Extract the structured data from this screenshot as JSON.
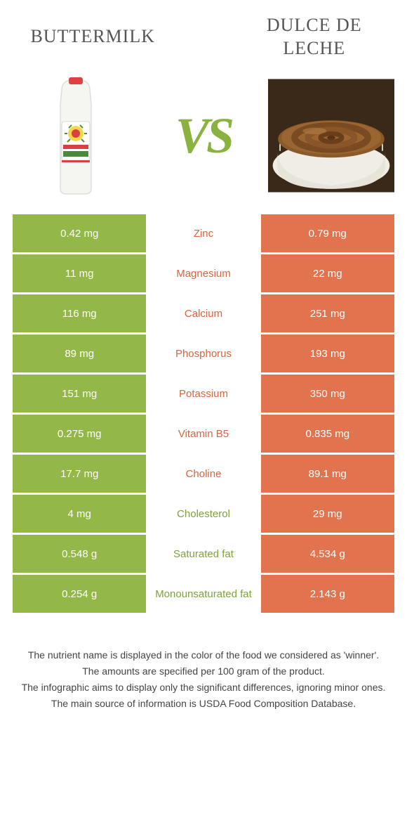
{
  "colors": {
    "green": "#94b847",
    "orange": "#e1734f",
    "midtext_orange": "#d9633f",
    "midtext_green": "#7fa238"
  },
  "header": {
    "left_title": "BUTTERMILK",
    "right_title": "DULCE DE LECHE",
    "vs": "VS"
  },
  "rows": [
    {
      "left": "0.42 mg",
      "mid": "Zinc",
      "right": "0.79 mg",
      "winner": "right"
    },
    {
      "left": "11 mg",
      "mid": "Magnesium",
      "right": "22 mg",
      "winner": "right"
    },
    {
      "left": "116 mg",
      "mid": "Calcium",
      "right": "251 mg",
      "winner": "right"
    },
    {
      "left": "89 mg",
      "mid": "Phosphorus",
      "right": "193 mg",
      "winner": "right"
    },
    {
      "left": "151 mg",
      "mid": "Potassium",
      "right": "350 mg",
      "winner": "right"
    },
    {
      "left": "0.275 mg",
      "mid": "Vitamin B5",
      "right": "0.835 mg",
      "winner": "right"
    },
    {
      "left": "17.7 mg",
      "mid": "Choline",
      "right": "89.1 mg",
      "winner": "right"
    },
    {
      "left": "4 mg",
      "mid": "Cholesterol",
      "right": "29 mg",
      "winner": "left"
    },
    {
      "left": "0.548 g",
      "mid": "Saturated fat",
      "right": "4.534 g",
      "winner": "left"
    },
    {
      "left": "0.254 g",
      "mid": "Monounsaturated fat",
      "right": "2.143 g",
      "winner": "left"
    }
  ],
  "footer": {
    "line1": "The nutrient name is displayed in the color of the food we considered as 'winner'.",
    "line2": "The amounts are specified per 100 gram of the product.",
    "line3": "The infographic aims to display only the significant differences, ignoring minor ones.",
    "line4": "The main source of information is USDA Food Composition Database."
  }
}
